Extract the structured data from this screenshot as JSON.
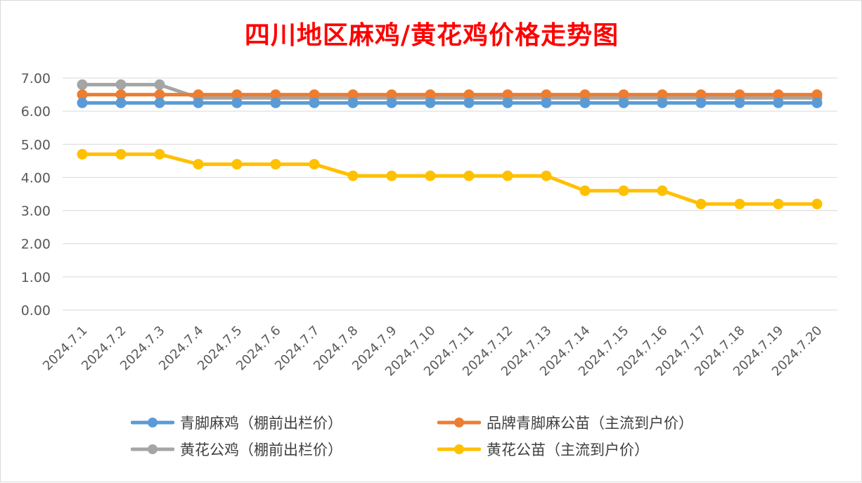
{
  "chart_data": {
    "type": "line",
    "title": "四川地区麻鸡/黄花鸡价格走势图",
    "xlabel": "",
    "ylabel": "",
    "ylim": [
      0,
      7
    ],
    "yticks": [
      "0.00",
      "1.00",
      "2.00",
      "3.00",
      "4.00",
      "5.00",
      "6.00",
      "7.00"
    ],
    "grid": true,
    "legend_position": "bottom",
    "categories": [
      "2024.7.1",
      "2024.7.2",
      "2024.7.3",
      "2024.7.4",
      "2024.7.5",
      "2024.7.6",
      "2024.7.7",
      "2024.7.8",
      "2024.7.9",
      "2024.7.10",
      "2024.7.11",
      "2024.7.12",
      "2024.7.13",
      "2024.7.14",
      "2024.7.15",
      "2024.7.16",
      "2024.7.17",
      "2024.7.18",
      "2024.7.19",
      "2024.7.20"
    ],
    "series": [
      {
        "name": "青脚麻鸡（棚前出栏价）",
        "color": "#5b9bd5",
        "values": [
          6.25,
          6.25,
          6.25,
          6.25,
          6.25,
          6.25,
          6.25,
          6.25,
          6.25,
          6.25,
          6.25,
          6.25,
          6.25,
          6.25,
          6.25,
          6.25,
          6.25,
          6.25,
          6.25,
          6.25
        ]
      },
      {
        "name": "品牌青脚麻公苗（主流到户价）",
        "color": "#ed7d31",
        "values": [
          6.5,
          6.5,
          6.5,
          6.5,
          6.5,
          6.5,
          6.5,
          6.5,
          6.5,
          6.5,
          6.5,
          6.5,
          6.5,
          6.5,
          6.5,
          6.5,
          6.5,
          6.5,
          6.5,
          6.5
        ]
      },
      {
        "name": "黄花公鸡（棚前出栏价）",
        "color": "#a5a5a5",
        "values": [
          6.8,
          6.8,
          6.8,
          6.4,
          6.4,
          6.4,
          6.4,
          6.4,
          6.4,
          6.4,
          6.4,
          6.4,
          6.4,
          6.4,
          6.4,
          6.4,
          6.4,
          6.4,
          6.4,
          6.4
        ]
      },
      {
        "name": "黄花公苗（主流到户价）",
        "color": "#ffc000",
        "values": [
          4.7,
          4.7,
          4.7,
          4.4,
          4.4,
          4.4,
          4.4,
          4.05,
          4.05,
          4.05,
          4.05,
          4.05,
          4.05,
          3.6,
          3.6,
          3.6,
          3.2,
          3.2,
          3.2,
          3.2
        ]
      }
    ]
  }
}
